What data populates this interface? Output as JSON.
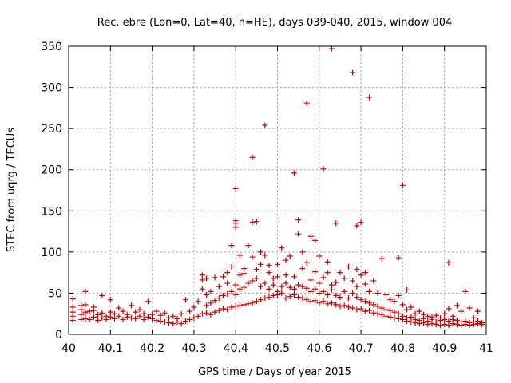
{
  "chart_data": {
    "type": "scatter",
    "title": "Rec. ebre (Lon=0, Lat=40, h=HE), days 039-040, 2015, window 004",
    "xlabel": "GPS time / Days of year 2015",
    "ylabel": "STEC from uqrg / TECUs",
    "xlim": [
      40,
      41
    ],
    "ylim": [
      0,
      350
    ],
    "xticks": [
      "40",
      "40.1",
      "40.2",
      "40.3",
      "40.4",
      "40.5",
      "40.6",
      "40.7",
      "40.8",
      "40.9",
      "41"
    ],
    "yticks": [
      "0",
      "50",
      "100",
      "150",
      "200",
      "250",
      "300",
      "350"
    ],
    "grid": true,
    "marker": "+",
    "color": "#cc0000",
    "series": [
      {
        "points": [
          [
            40.01,
            17
          ],
          [
            40.01,
            22
          ],
          [
            40.01,
            27
          ],
          [
            40.01,
            33
          ],
          [
            40.01,
            43
          ],
          [
            40.03,
            18
          ],
          [
            40.03,
            24
          ],
          [
            40.03,
            30
          ],
          [
            40.03,
            35
          ],
          [
            40.04,
            19
          ],
          [
            40.04,
            25
          ],
          [
            40.04,
            27
          ],
          [
            40.04,
            36
          ],
          [
            40.04,
            52
          ],
          [
            40.05,
            18
          ],
          [
            40.05,
            28
          ],
          [
            40.06,
            21
          ],
          [
            40.06,
            29
          ],
          [
            40.06,
            33
          ],
          [
            40.07,
            17
          ],
          [
            40.07,
            24
          ],
          [
            40.08,
            20
          ],
          [
            40.08,
            26
          ],
          [
            40.08,
            47
          ],
          [
            40.09,
            18
          ],
          [
            40.09,
            22
          ],
          [
            40.1,
            21
          ],
          [
            40.1,
            27
          ],
          [
            40.1,
            42
          ],
          [
            40.11,
            19
          ],
          [
            40.11,
            25
          ],
          [
            40.12,
            22
          ],
          [
            40.12,
            32
          ],
          [
            40.13,
            18
          ],
          [
            40.13,
            28
          ],
          [
            40.14,
            21
          ],
          [
            40.14,
            24
          ],
          [
            40.15,
            20
          ],
          [
            40.15,
            35
          ],
          [
            40.16,
            19
          ],
          [
            40.16,
            27
          ],
          [
            40.17,
            22
          ],
          [
            40.17,
            30
          ],
          [
            40.18,
            18
          ],
          [
            40.18,
            25
          ],
          [
            40.19,
            21
          ],
          [
            40.19,
            40
          ],
          [
            40.2,
            19
          ],
          [
            40.2,
            24
          ],
          [
            40.21,
            17
          ],
          [
            40.21,
            28
          ],
          [
            40.22,
            16
          ],
          [
            40.22,
            23
          ],
          [
            40.23,
            15
          ],
          [
            40.23,
            26
          ],
          [
            40.24,
            14
          ],
          [
            40.24,
            20
          ],
          [
            40.25,
            13
          ],
          [
            40.25,
            22
          ],
          [
            40.26,
            15
          ],
          [
            40.26,
            19
          ],
          [
            40.27,
            13
          ],
          [
            40.27,
            25
          ],
          [
            40.28,
            16
          ],
          [
            40.28,
            42
          ],
          [
            40.29,
            18
          ],
          [
            40.29,
            28
          ],
          [
            40.3,
            20
          ],
          [
            40.3,
            33
          ],
          [
            40.31,
            22
          ],
          [
            40.31,
            40
          ],
          [
            40.32,
            25
          ],
          [
            40.32,
            55
          ],
          [
            40.32,
            66
          ],
          [
            40.32,
            72
          ],
          [
            40.33,
            26
          ],
          [
            40.33,
            35
          ],
          [
            40.33,
            48
          ],
          [
            40.33,
            68
          ],
          [
            40.34,
            24
          ],
          [
            40.34,
            38
          ],
          [
            40.34,
            52
          ],
          [
            40.35,
            27
          ],
          [
            40.35,
            41
          ],
          [
            40.35,
            69
          ],
          [
            40.36,
            29
          ],
          [
            40.36,
            44
          ],
          [
            40.36,
            58
          ],
          [
            40.37,
            31
          ],
          [
            40.37,
            47
          ],
          [
            40.37,
            70
          ],
          [
            40.38,
            30
          ],
          [
            40.38,
            49
          ],
          [
            40.38,
            62
          ],
          [
            40.38,
            75
          ],
          [
            40.39,
            33
          ],
          [
            40.39,
            52
          ],
          [
            40.39,
            82
          ],
          [
            40.39,
            108
          ],
          [
            40.4,
            34
          ],
          [
            40.4,
            48
          ],
          [
            40.4,
            60
          ],
          [
            40.4,
            130
          ],
          [
            40.4,
            135
          ],
          [
            40.4,
            138
          ],
          [
            40.4,
            177
          ],
          [
            40.41,
            35
          ],
          [
            40.41,
            55
          ],
          [
            40.41,
            72
          ],
          [
            40.41,
            96
          ],
          [
            40.42,
            36
          ],
          [
            40.42,
            57
          ],
          [
            40.42,
            74
          ],
          [
            40.42,
            80
          ],
          [
            40.43,
            37
          ],
          [
            40.43,
            62
          ],
          [
            40.43,
            108
          ],
          [
            40.44,
            38
          ],
          [
            40.44,
            65
          ],
          [
            40.44,
            94
          ],
          [
            40.44,
            136
          ],
          [
            40.44,
            215
          ],
          [
            40.45,
            40
          ],
          [
            40.45,
            68
          ],
          [
            40.45,
            79
          ],
          [
            40.45,
            137
          ],
          [
            40.46,
            42
          ],
          [
            40.46,
            58
          ],
          [
            40.46,
            85
          ],
          [
            40.46,
            100
          ],
          [
            40.47,
            44
          ],
          [
            40.47,
            62
          ],
          [
            40.47,
            96
          ],
          [
            40.47,
            254
          ],
          [
            40.48,
            45
          ],
          [
            40.48,
            55
          ],
          [
            40.48,
            75
          ],
          [
            40.48,
            84
          ],
          [
            40.49,
            47
          ],
          [
            40.49,
            60
          ],
          [
            40.49,
            68
          ],
          [
            40.5,
            48
          ],
          [
            40.5,
            52
          ],
          [
            40.5,
            70
          ],
          [
            40.5,
            85
          ],
          [
            40.51,
            50
          ],
          [
            40.51,
            58
          ],
          [
            40.51,
            105
          ],
          [
            40.52,
            44
          ],
          [
            40.52,
            62
          ],
          [
            40.52,
            72
          ],
          [
            40.52,
            90
          ],
          [
            40.53,
            46
          ],
          [
            40.53,
            57
          ],
          [
            40.53,
            95
          ],
          [
            40.54,
            48
          ],
          [
            40.54,
            55
          ],
          [
            40.54,
            70
          ],
          [
            40.54,
            196
          ],
          [
            40.55,
            45
          ],
          [
            40.55,
            60
          ],
          [
            40.55,
            122
          ],
          [
            40.55,
            139
          ],
          [
            40.56,
            44
          ],
          [
            40.56,
            58
          ],
          [
            40.56,
            80
          ],
          [
            40.56,
            100
          ],
          [
            40.57,
            42
          ],
          [
            40.57,
            56
          ],
          [
            40.57,
            87
          ],
          [
            40.57,
            281
          ],
          [
            40.58,
            40
          ],
          [
            40.58,
            52
          ],
          [
            40.58,
            66
          ],
          [
            40.58,
            119
          ],
          [
            40.59,
            41
          ],
          [
            40.59,
            55
          ],
          [
            40.59,
            76
          ],
          [
            40.59,
            114
          ],
          [
            40.6,
            38
          ],
          [
            40.6,
            50
          ],
          [
            40.6,
            62
          ],
          [
            40.6,
            95
          ],
          [
            40.61,
            40
          ],
          [
            40.61,
            52
          ],
          [
            40.61,
            69
          ],
          [
            40.61,
            201
          ],
          [
            40.62,
            37
          ],
          [
            40.62,
            48
          ],
          [
            40.62,
            75
          ],
          [
            40.62,
            88
          ],
          [
            40.63,
            38
          ],
          [
            40.63,
            54
          ],
          [
            40.63,
            60
          ],
          [
            40.63,
            347
          ],
          [
            40.64,
            36
          ],
          [
            40.64,
            47
          ],
          [
            40.64,
            63
          ],
          [
            40.64,
            135
          ],
          [
            40.65,
            34
          ],
          [
            40.65,
            45
          ],
          [
            40.65,
            75
          ],
          [
            40.66,
            35
          ],
          [
            40.66,
            52
          ],
          [
            40.66,
            68
          ],
          [
            40.67,
            33
          ],
          [
            40.67,
            44
          ],
          [
            40.67,
            82
          ],
          [
            40.68,
            32
          ],
          [
            40.68,
            50
          ],
          [
            40.68,
            65
          ],
          [
            40.68,
            318
          ],
          [
            40.69,
            30
          ],
          [
            40.69,
            45
          ],
          [
            40.69,
            58
          ],
          [
            40.69,
            79
          ],
          [
            40.69,
            132
          ],
          [
            40.7,
            31
          ],
          [
            40.7,
            42
          ],
          [
            40.7,
            72
          ],
          [
            40.7,
            136
          ],
          [
            40.71,
            28
          ],
          [
            40.71,
            40
          ],
          [
            40.71,
            61
          ],
          [
            40.71,
            75
          ],
          [
            40.72,
            29
          ],
          [
            40.72,
            38
          ],
          [
            40.72,
            52
          ],
          [
            40.72,
            288
          ],
          [
            40.73,
            26
          ],
          [
            40.73,
            36
          ],
          [
            40.73,
            65
          ],
          [
            40.74,
            25
          ],
          [
            40.74,
            34
          ],
          [
            40.74,
            50
          ],
          [
            40.75,
            24
          ],
          [
            40.75,
            32
          ],
          [
            40.75,
            92
          ],
          [
            40.76,
            22
          ],
          [
            40.76,
            30
          ],
          [
            40.76,
            48
          ],
          [
            40.77,
            21
          ],
          [
            40.77,
            29
          ],
          [
            40.77,
            42
          ],
          [
            40.78,
            20
          ],
          [
            40.78,
            27
          ],
          [
            40.78,
            40
          ],
          [
            40.79,
            19
          ],
          [
            40.79,
            25
          ],
          [
            40.79,
            47
          ],
          [
            40.79,
            93
          ],
          [
            40.8,
            18
          ],
          [
            40.8,
            22
          ],
          [
            40.8,
            36
          ],
          [
            40.8,
            181
          ],
          [
            40.81,
            16
          ],
          [
            40.81,
            20
          ],
          [
            40.81,
            30
          ],
          [
            40.81,
            54
          ],
          [
            40.82,
            15
          ],
          [
            40.82,
            21
          ],
          [
            40.82,
            33
          ],
          [
            40.83,
            14
          ],
          [
            40.83,
            18
          ],
          [
            40.83,
            25
          ],
          [
            40.84,
            13
          ],
          [
            40.84,
            17
          ],
          [
            40.84,
            28
          ],
          [
            40.85,
            14
          ],
          [
            40.85,
            19
          ],
          [
            40.85,
            24
          ],
          [
            40.86,
            12
          ],
          [
            40.86,
            16
          ],
          [
            40.86,
            22
          ],
          [
            40.87,
            13
          ],
          [
            40.87,
            18
          ],
          [
            40.87,
            21
          ],
          [
            40.88,
            12
          ],
          [
            40.88,
            15
          ],
          [
            40.88,
            23
          ],
          [
            40.89,
            11
          ],
          [
            40.89,
            17
          ],
          [
            40.89,
            20
          ],
          [
            40.9,
            12
          ],
          [
            40.9,
            18
          ],
          [
            40.9,
            25
          ],
          [
            40.91,
            11
          ],
          [
            40.91,
            16
          ],
          [
            40.91,
            31
          ],
          [
            40.91,
            87
          ],
          [
            40.92,
            13
          ],
          [
            40.92,
            18
          ],
          [
            40.92,
            22
          ],
          [
            40.93,
            12
          ],
          [
            40.93,
            17
          ],
          [
            40.93,
            35
          ],
          [
            40.94,
            11
          ],
          [
            40.94,
            15
          ],
          [
            40.94,
            28
          ],
          [
            40.95,
            12
          ],
          [
            40.95,
            16
          ],
          [
            40.95,
            52
          ],
          [
            40.96,
            11
          ],
          [
            40.96,
            14
          ],
          [
            40.96,
            32
          ],
          [
            40.97,
            12
          ],
          [
            40.97,
            15
          ],
          [
            40.97,
            20
          ],
          [
            40.98,
            13
          ],
          [
            40.98,
            16
          ],
          [
            40.98,
            28
          ],
          [
            40.99,
            12
          ],
          [
            40.99,
            14
          ]
        ]
      }
    ]
  }
}
